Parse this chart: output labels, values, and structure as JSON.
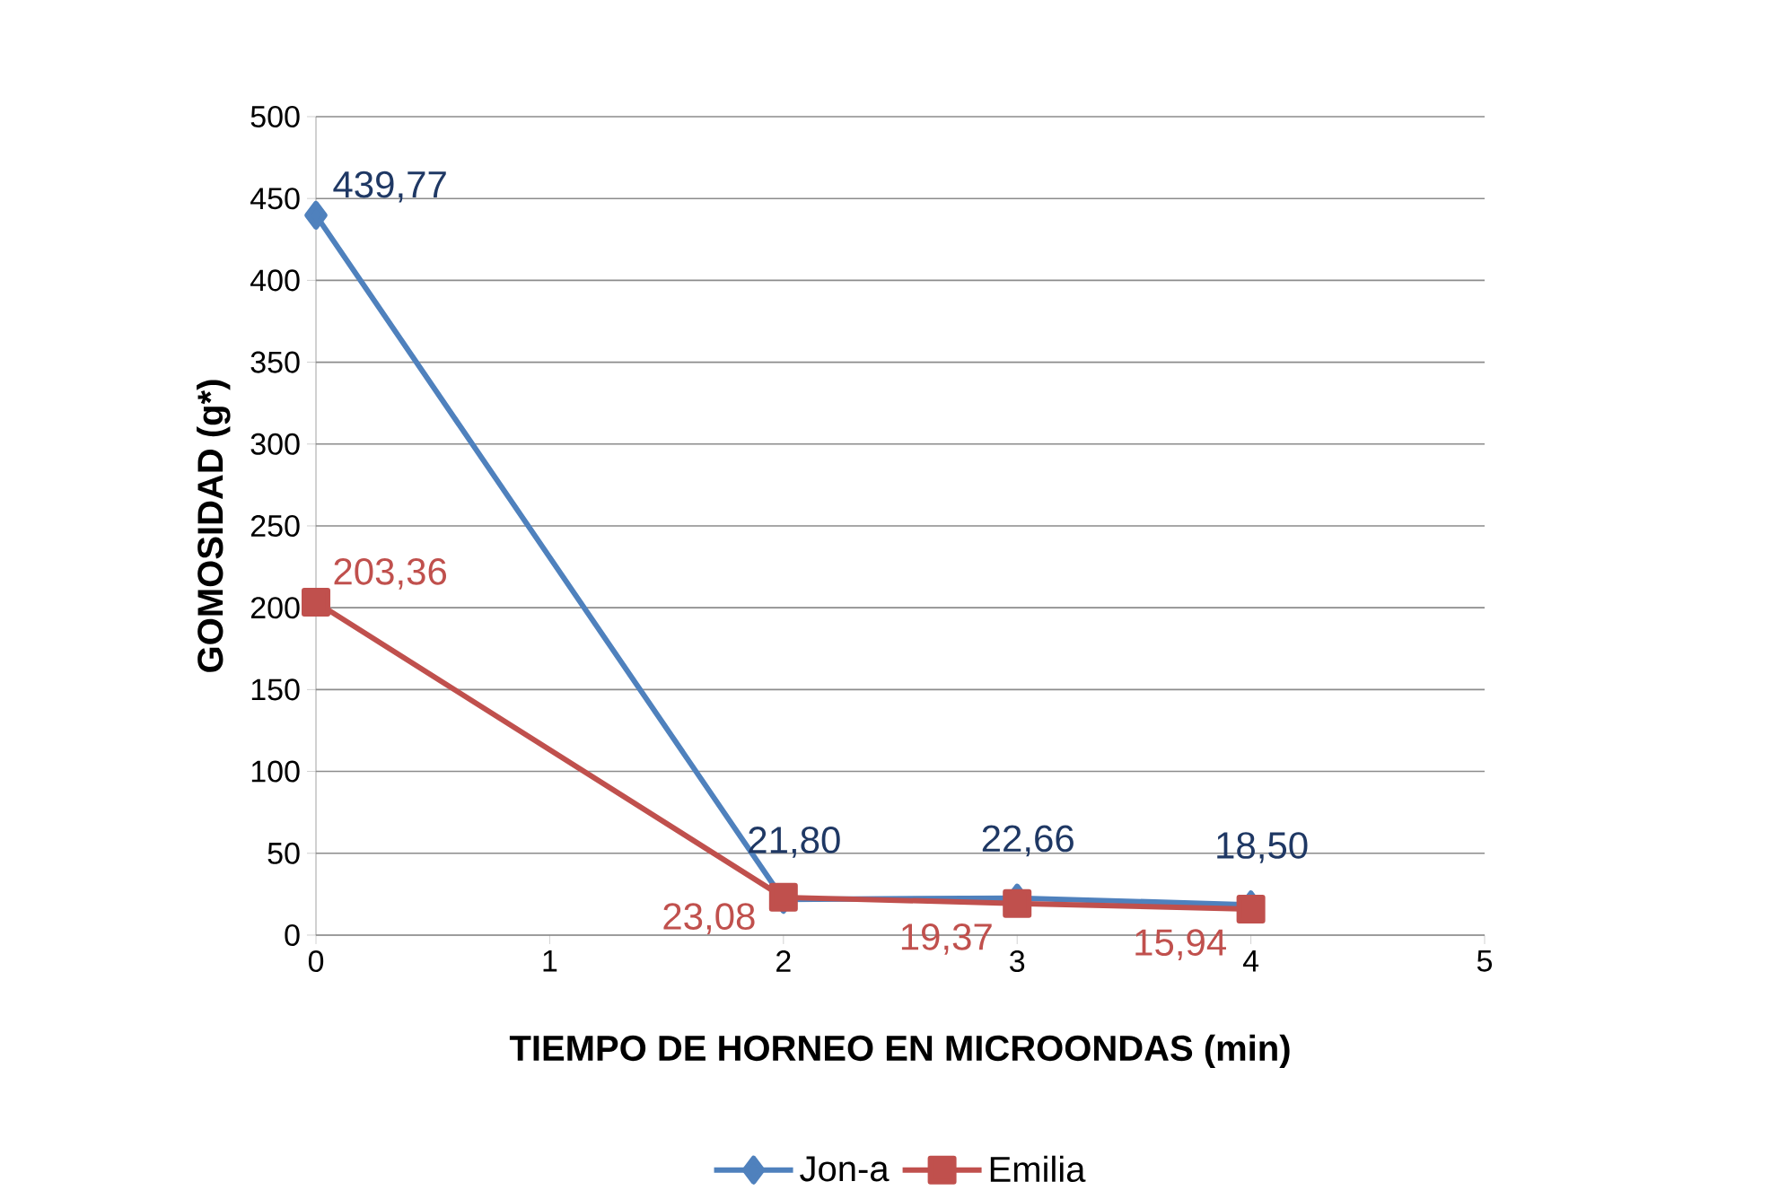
{
  "chart_data": {
    "type": "line",
    "xlabel": "TIEMPO DE HORNEO EN MICROONDAS (min)",
    "ylabel": "GOMOSIDAD (g*)",
    "xlim": [
      0,
      5
    ],
    "xticks": [
      0,
      1,
      2,
      3,
      4,
      5
    ],
    "ylim": [
      0,
      500
    ],
    "yticks": [
      0,
      50,
      100,
      150,
      200,
      250,
      300,
      350,
      400,
      450,
      500
    ],
    "grid": "y",
    "legend": "bottom",
    "x": [
      0,
      2,
      3,
      4
    ],
    "series": [
      {
        "name": "Jon-a",
        "color": "#4f81bd",
        "marker": "diamond",
        "values": [
          439.77,
          21.8,
          22.66,
          18.5
        ],
        "value_labels": [
          "439,77",
          "21,80",
          "22,66",
          "18,50"
        ]
      },
      {
        "name": "Emilia",
        "color": "#c0504d",
        "marker": "square",
        "values": [
          203.36,
          23.08,
          19.37,
          15.94
        ],
        "value_labels": [
          "203,36",
          "23,08",
          "19,37",
          "15,94"
        ]
      }
    ]
  }
}
